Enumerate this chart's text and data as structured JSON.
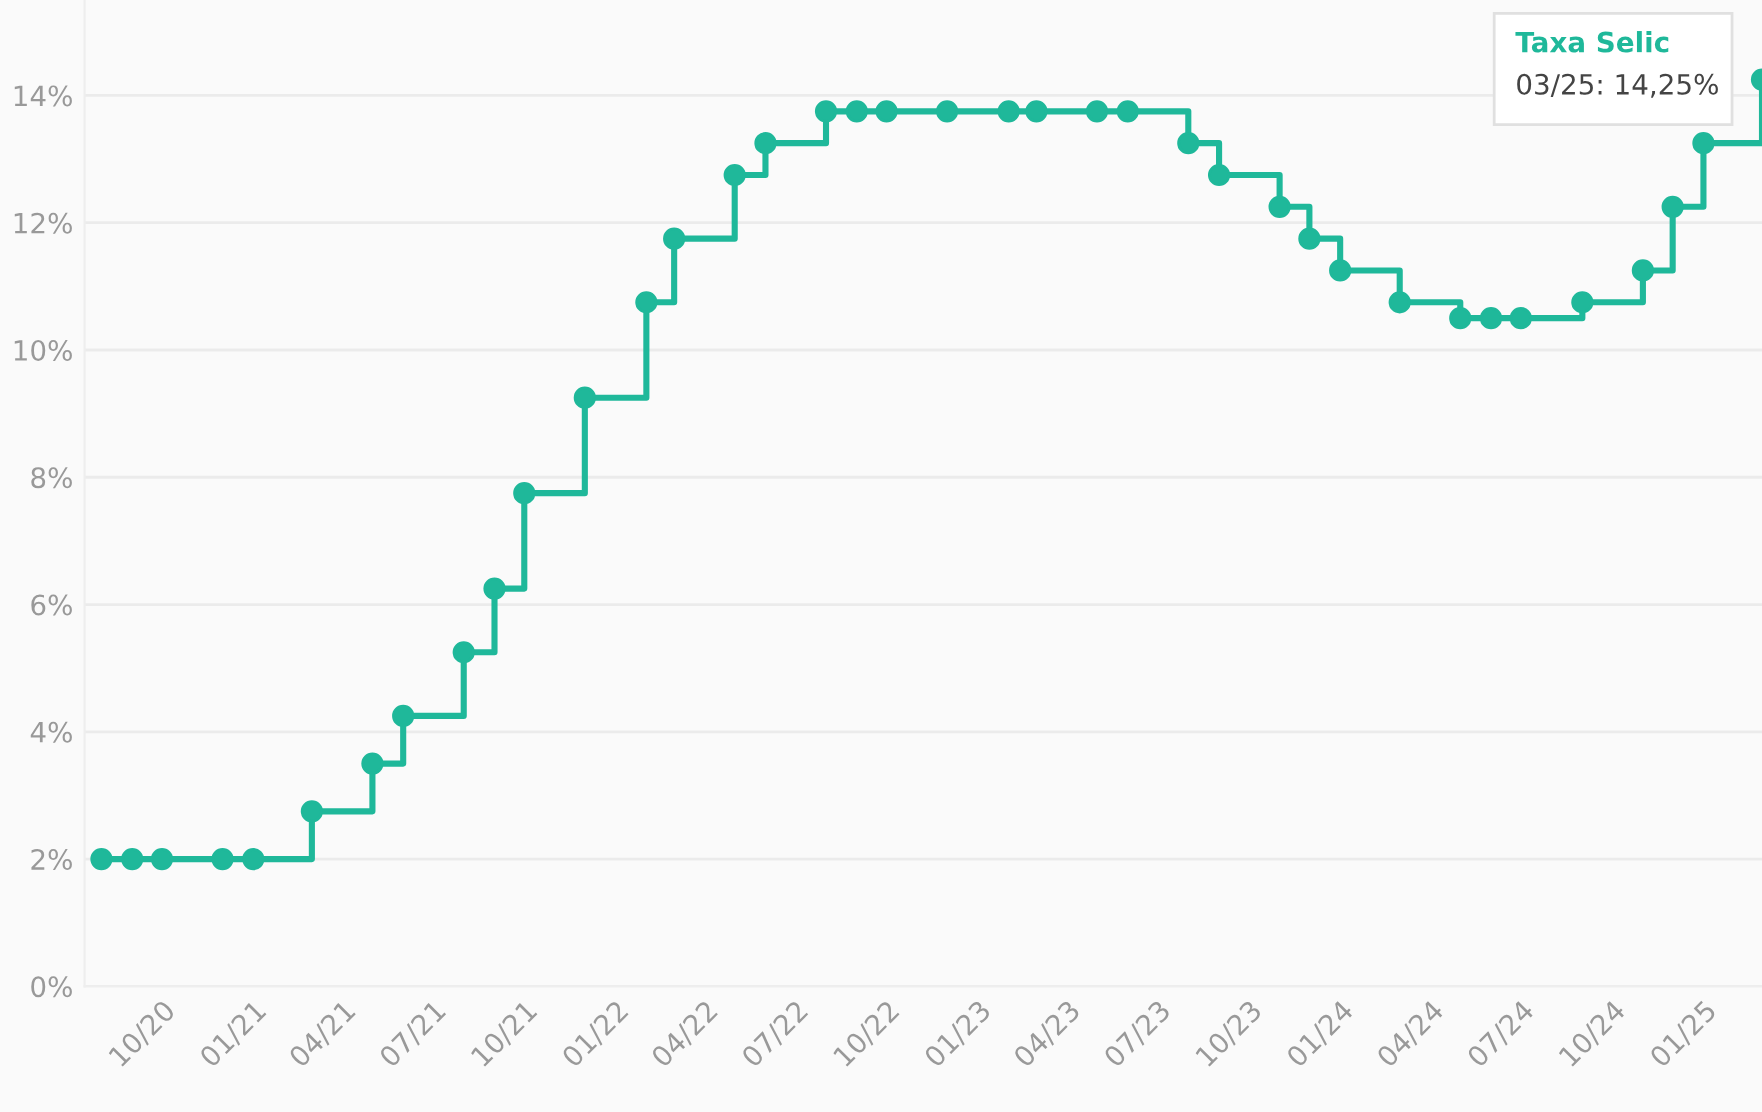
{
  "chart_data": {
    "type": "step",
    "x": [
      "2020-08",
      "2020-09",
      "2020-10",
      "2020-12",
      "2021-01",
      "2021-03",
      "2021-05",
      "2021-06",
      "2021-08",
      "2021-09",
      "2021-10",
      "2021-12",
      "2022-02",
      "2022-03",
      "2022-05",
      "2022-06",
      "2022-08",
      "2022-09",
      "2022-10",
      "2022-12",
      "2023-02",
      "2023-03",
      "2023-05",
      "2023-06",
      "2023-08",
      "2023-09",
      "2023-11",
      "2023-12",
      "2024-01",
      "2024-03",
      "2024-05",
      "2024-06",
      "2024-07",
      "2024-09",
      "2024-11",
      "2024-12",
      "2025-01",
      "2025-03"
    ],
    "series": [
      {
        "color": "#1fb89a",
        "values": [
          2,
          2,
          2,
          2,
          2,
          2.75,
          3.5,
          4.25,
          5.25,
          6.25,
          7.75,
          9.25,
          10.75,
          11.75,
          12.75,
          13.25,
          13.75,
          13.75,
          13.75,
          13.75,
          13.75,
          13.75,
          13.75,
          13.75,
          13.25,
          12.75,
          12.25,
          11.75,
          11.25,
          10.75,
          10.5,
          10.5,
          10.5,
          10.75,
          11.25,
          12.25,
          13.25,
          14.25
        ]
      }
    ],
    "xlim": [
      "2020-07-15",
      "2025-03-01"
    ],
    "xticks": [
      {
        "value": "2020-10",
        "label": "10/20"
      },
      {
        "value": "2021-01",
        "label": "01/21"
      },
      {
        "value": "2021-04",
        "label": "04/21"
      },
      {
        "value": "2021-07",
        "label": "07/21"
      },
      {
        "value": "2021-10",
        "label": "10/21"
      },
      {
        "value": "2022-01",
        "label": "01/22"
      },
      {
        "value": "2022-04",
        "label": "04/22"
      },
      {
        "value": "2022-07",
        "label": "07/22"
      },
      {
        "value": "2022-10",
        "label": "10/22"
      },
      {
        "value": "2023-01",
        "label": "01/23"
      },
      {
        "value": "2023-04",
        "label": "04/23"
      },
      {
        "value": "2023-07",
        "label": "07/23"
      },
      {
        "value": "2023-10",
        "label": "10/23"
      },
      {
        "value": "2024-01",
        "label": "01/24"
      },
      {
        "value": "2024-04",
        "label": "04/24"
      },
      {
        "value": "2024-07",
        "label": "07/24"
      },
      {
        "value": "2024-10",
        "label": "10/24"
      },
      {
        "value": "2025-01",
        "label": "01/25"
      }
    ],
    "ylim": [
      0,
      15.5
    ],
    "yticks": [
      {
        "value": 0,
        "label": "0%"
      },
      {
        "value": 2,
        "label": "2%"
      },
      {
        "value": 4,
        "label": "4%"
      },
      {
        "value": 6,
        "label": "6%"
      },
      {
        "value": 8,
        "label": "8%"
      },
      {
        "value": 10,
        "label": "10%"
      },
      {
        "value": 12,
        "label": "12%"
      },
      {
        "value": 14,
        "label": "14%"
      }
    ],
    "grid": "y",
    "marker": "circle",
    "line_style": "solid",
    "annotations": [
      "Taxa Selic",
      "03/25: 14,25%"
    ]
  }
}
